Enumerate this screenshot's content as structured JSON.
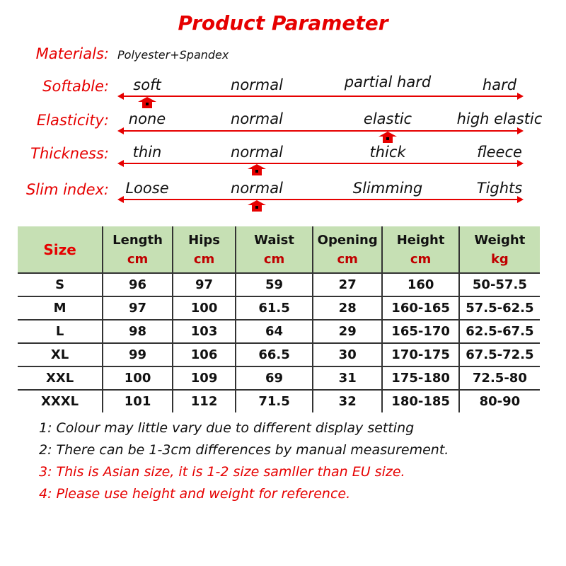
{
  "title": "Product Parameter",
  "materials": {
    "label": "Materials",
    "value": "Polyester+Spandex"
  },
  "params": [
    {
      "label": "Softable",
      "options": [
        "soft",
        "normal",
        "partial hard",
        "hard"
      ],
      "selected_index": 0
    },
    {
      "label": "Elasticity",
      "options": [
        "none",
        "normal",
        "elastic",
        "high elastic"
      ],
      "selected_index": 2
    },
    {
      "label": "Thickness",
      "options": [
        "thin",
        "normal",
        "thick",
        "fleece"
      ],
      "selected_index": 1
    },
    {
      "label": "Slim index",
      "options": [
        "Loose",
        "normal",
        "Slimming",
        "Tights"
      ],
      "selected_index": 1
    }
  ],
  "table": {
    "headers": [
      {
        "name": "Size",
        "unit": ""
      },
      {
        "name": "Length",
        "unit": "cm"
      },
      {
        "name": "Hips",
        "unit": "cm"
      },
      {
        "name": "Waist",
        "unit": "cm"
      },
      {
        "name": "Opening",
        "unit": "cm"
      },
      {
        "name": "Height",
        "unit": "cm"
      },
      {
        "name": "Weight",
        "unit": "kg"
      }
    ],
    "rows": [
      [
        "S",
        "96",
        "97",
        "59",
        "27",
        "160",
        "50-57.5"
      ],
      [
        "M",
        "97",
        "100",
        "61.5",
        "28",
        "160-165",
        "57.5-62.5"
      ],
      [
        "L",
        "98",
        "103",
        "64",
        "29",
        "165-170",
        "62.5-67.5"
      ],
      [
        "XL",
        "99",
        "106",
        "66.5",
        "30",
        "170-175",
        "67.5-72.5"
      ],
      [
        "XXL",
        "100",
        "109",
        "69",
        "31",
        "175-180",
        "72.5-80"
      ],
      [
        "XXXL",
        "101",
        "112",
        "71.5",
        "32",
        "180-185",
        "80-90"
      ]
    ],
    "header_bg": "#c6e0b4"
  },
  "notes": [
    {
      "text": "1: Colour may little vary due to different display setting",
      "color": "#111111"
    },
    {
      "text": "2: There can be 1-3cm differences by manual measurement.",
      "color": "#111111"
    },
    {
      "text": "3: This is Asian size, it is 1-2 size samller than EU size.",
      "color": "#e60000"
    },
    {
      "text": "4: Please use height and weight for reference.",
      "color": "#e60000"
    }
  ],
  "accent": "#e60000"
}
